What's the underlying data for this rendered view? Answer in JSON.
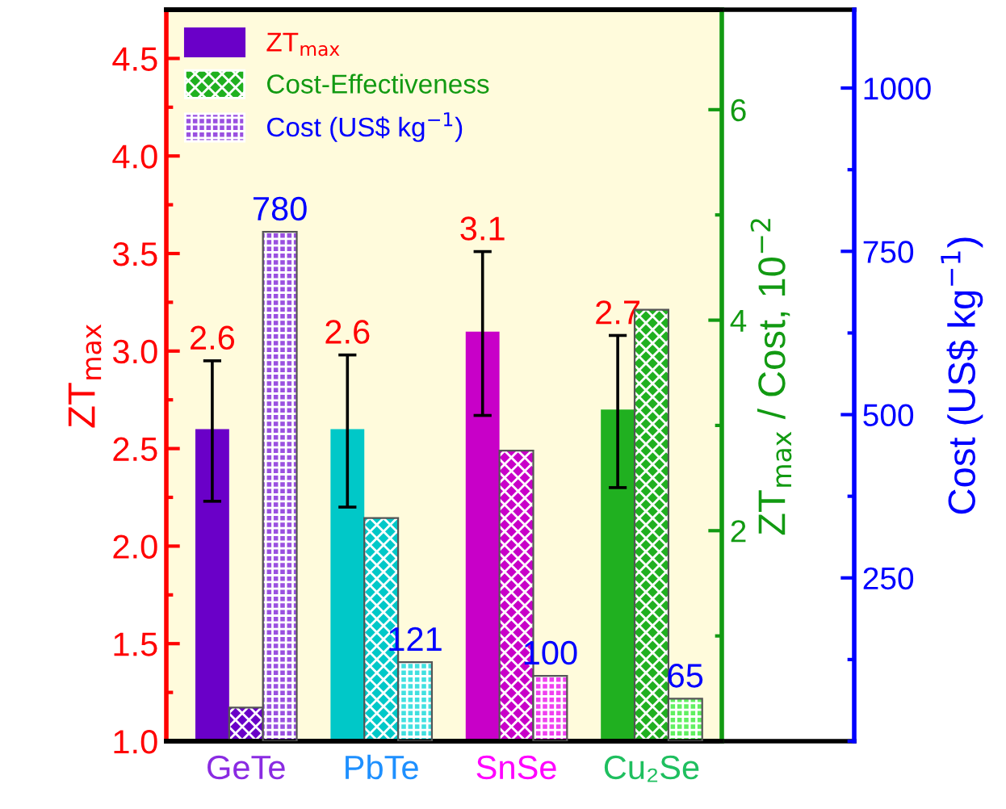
{
  "chart_data": {
    "type": "bar",
    "categories": [
      "GeTe",
      "PbTe",
      "SnSe",
      "Cu₂Se"
    ],
    "ylabel": "ZT$_{max}$",
    "y2label": "ZT$_{max}$ / Cost, 10$^{−2}$",
    "y3label": "Cost (US$ kg$^{−1}$)",
    "ylim": [
      1.0,
      4.75
    ],
    "yticks": [
      {
        "value": 1,
        "label": "1.0"
      },
      1.5,
      {
        "value": 2,
        "label": "2.0"
      },
      2.5,
      {
        "value": 3,
        "label": "3.0"
      },
      3.5,
      {
        "value": 4,
        "label": "4.0"
      },
      4.5
    ],
    "y2lim": [
      0,
      6.95
    ],
    "y2ticks": [
      2,
      4,
      6
    ],
    "y3lim": [
      0,
      1120
    ],
    "y3ticks": [
      250,
      500,
      750,
      1000
    ],
    "legend": "top left",
    "series": [
      {
        "name": "ZT$_{max}$",
        "axis": "y",
        "color": "#6a00c8",
        "colors": [
          "#6a00c8",
          "#00c8c8",
          "#c800c8",
          "#20b020"
        ],
        "values": [
          2.6,
          2.6,
          3.1,
          2.7
        ],
        "errors": [
          [
            2.23,
            2.95
          ],
          [
            2.2,
            2.98
          ],
          [
            2.67,
            3.51
          ],
          [
            2.3,
            3.08
          ]
        ],
        "value_labels": [
          "2.6",
          "2.6",
          "3.1",
          "2.7"
        ]
      },
      {
        "name": "Cost-Effectiveness",
        "axis": "y2",
        "color": "#20b020",
        "colors": [
          "#6a00c8",
          "#00c8c8",
          "#c800c8",
          "#20b020"
        ],
        "values": [
          0.32,
          2.12,
          2.76,
          4.1
        ]
      },
      {
        "name": "Cost (US$ kg$^{−1}$)",
        "axis": "y3",
        "color": "#9a50e0",
        "colors": [
          "#9a50e0",
          "#40e0e0",
          "#f040f0",
          "#60f060"
        ],
        "values": [
          780,
          121,
          100,
          65
        ],
        "value_labels": [
          "780",
          "121",
          "100",
          "65"
        ]
      }
    ]
  }
}
